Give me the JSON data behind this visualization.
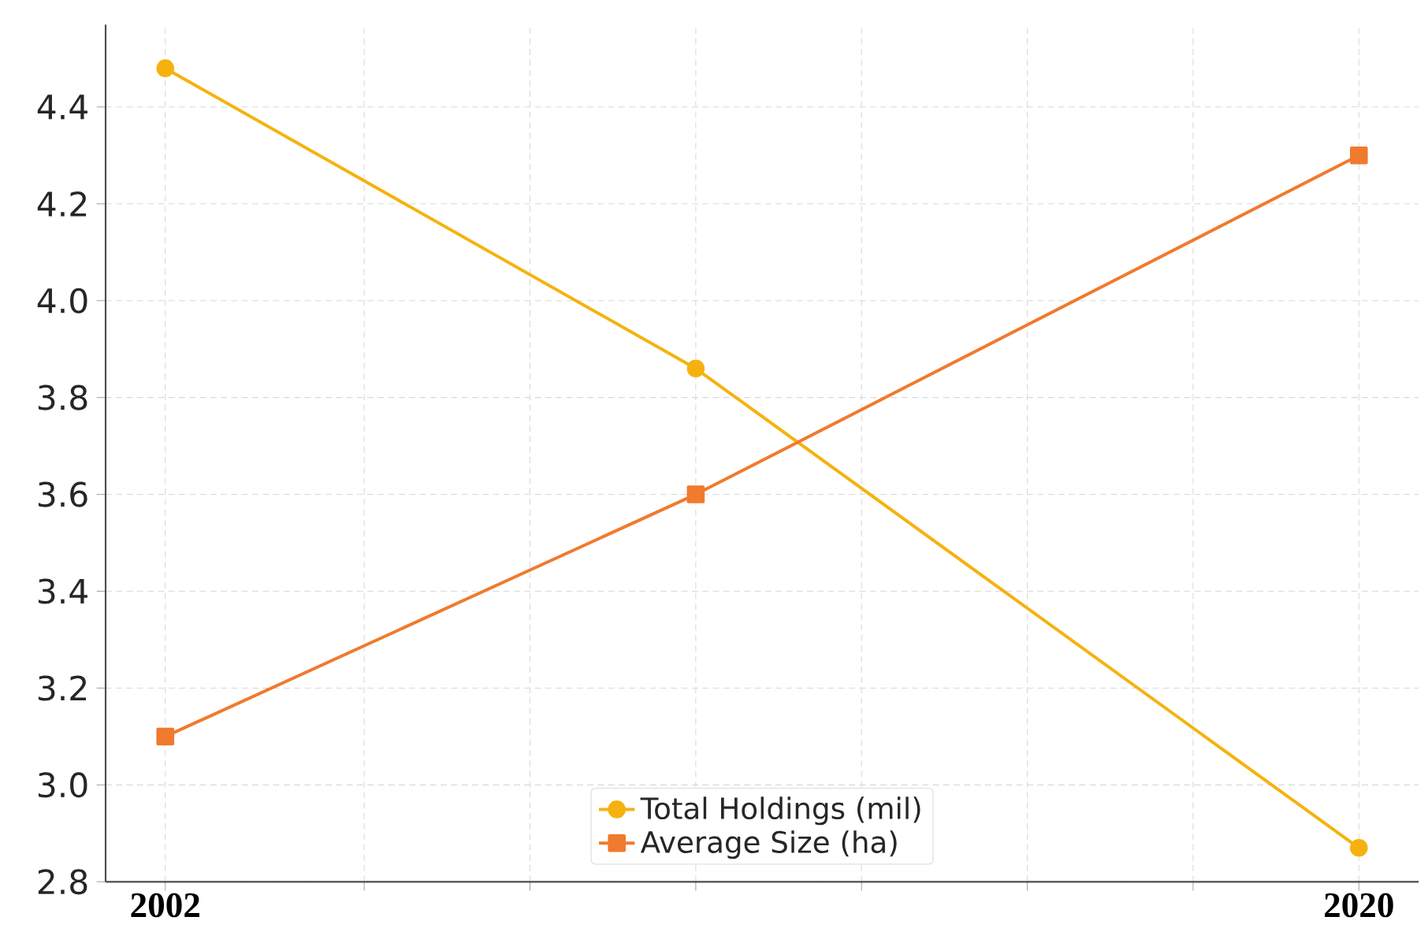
{
  "chart_data": {
    "type": "line",
    "x": [
      2002,
      2010,
      2020
    ],
    "series": [
      {
        "name": "Total Holdings (mil)",
        "color": "#f5b20f",
        "values": [
          4.48,
          3.86,
          2.87
        ],
        "marker": "circle"
      },
      {
        "name": "Average Size (ha)",
        "color": "#f07a2e",
        "values": [
          3.1,
          3.6,
          4.3
        ],
        "marker": "square"
      }
    ],
    "xlim": [
      2001.1,
      2020.9
    ],
    "ylim": [
      2.8,
      4.57
    ],
    "xticks": [
      {
        "value": 2002,
        "label": "2002"
      },
      {
        "value": 2005,
        "label": null
      },
      {
        "value": 2007.5,
        "label": null
      },
      {
        "value": 2010,
        "label": null
      },
      {
        "value": 2012.5,
        "label": null
      },
      {
        "value": 2015,
        "label": null
      },
      {
        "value": 2017.5,
        "label": null
      },
      {
        "value": 2020,
        "label": "2020"
      }
    ],
    "yticks": [
      2.8,
      {
        "value": 3,
        "label": "3.0"
      },
      3.2,
      3.4,
      3.6,
      3.8,
      {
        "value": 4,
        "label": "4.0"
      },
      4.2,
      4.4
    ],
    "grid": true,
    "legend": "bottom",
    "line_style": "solid"
  }
}
